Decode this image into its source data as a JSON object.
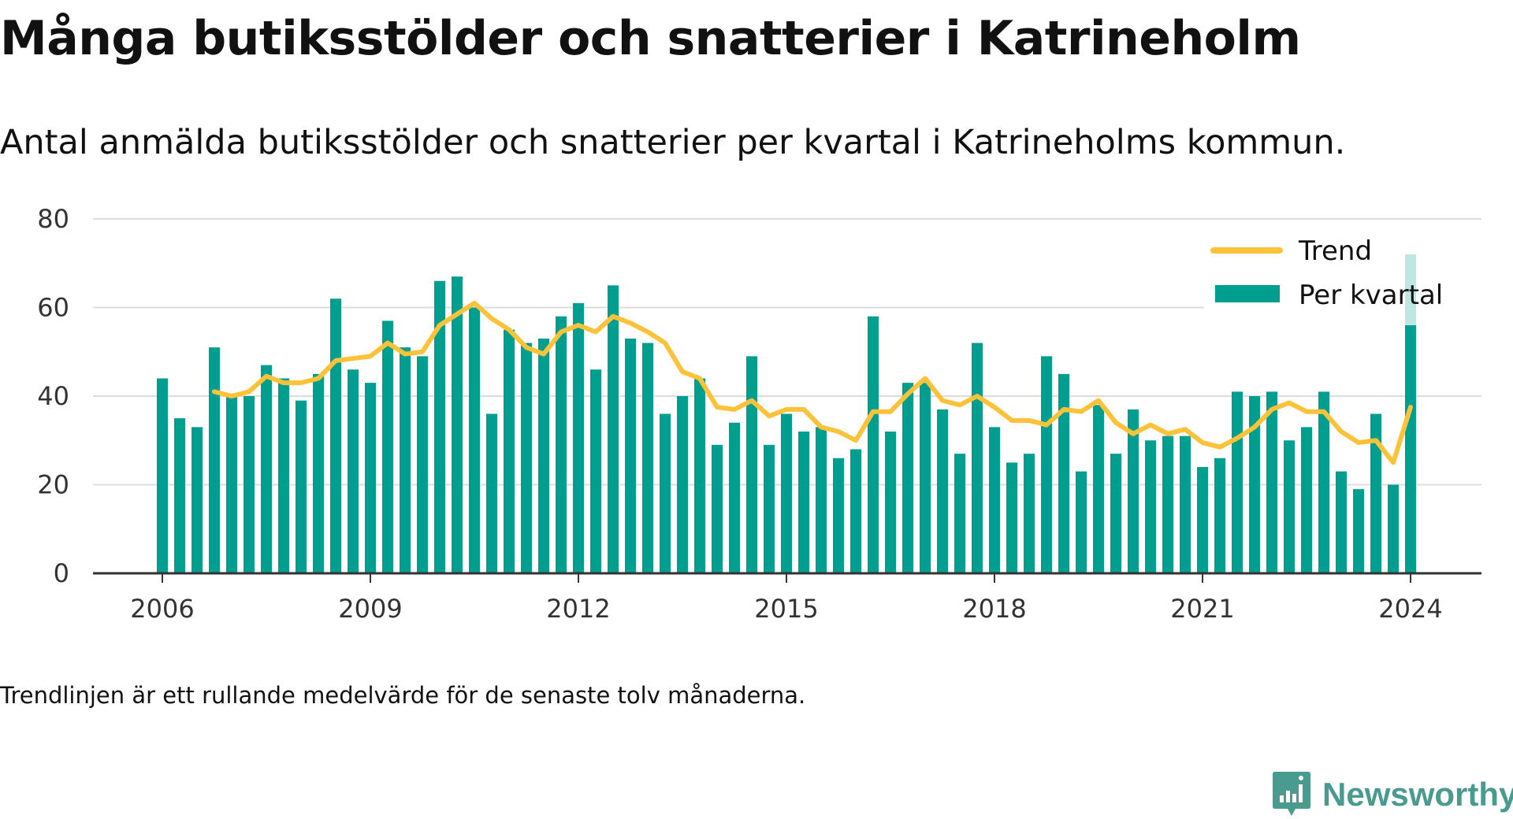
{
  "header": {
    "title": "Många butiksstölder och snatterier i Katrineholm",
    "subtitle": "Antal anmälda butiksstölder och snatterier per kvartal i Katrineholms kommun."
  },
  "footer": {
    "note": "Trendlinjen är ett rullande medelvärde för de senaste tolv månaderna.",
    "brand": "Newsworthy"
  },
  "colors": {
    "bar": "#009e8f",
    "bar_last": "#bfe6e1",
    "trend": "#fcc23a",
    "grid": "#dddddd",
    "axis": "#333333",
    "brand": "#4a9b8f"
  },
  "chart_data": {
    "type": "bar",
    "x_start": "2006-Q1",
    "x_ticks": [
      "2006",
      "2009",
      "2012",
      "2015",
      "2018",
      "2021",
      "2024"
    ],
    "y_ticks": [
      "0",
      "20",
      "40",
      "60",
      "80"
    ],
    "ylim": [
      0,
      80
    ],
    "grid": true,
    "legend_position": "top-right",
    "series": [
      {
        "name": "Per kvartal",
        "type": "bar",
        "values": [
          44,
          35,
          33,
          51,
          40,
          40,
          47,
          44,
          39,
          45,
          62,
          46,
          43,
          57,
          51,
          49,
          66,
          67,
          60,
          36,
          55,
          52,
          53,
          58,
          61,
          46,
          65,
          53,
          52,
          36,
          40,
          44,
          29,
          34,
          49,
          29,
          36,
          32,
          33,
          26,
          28,
          58,
          32,
          43,
          43,
          37,
          27,
          52,
          33,
          25,
          27,
          49,
          45,
          23,
          38,
          27,
          37,
          30,
          31,
          31,
          24,
          26,
          41,
          40,
          41,
          30,
          33,
          41,
          23,
          19,
          36,
          20,
          72
        ]
      },
      {
        "name": "Trend",
        "type": "line",
        "values": [
          null,
          null,
          null,
          41,
          40,
          41,
          44.5,
          43,
          43,
          44,
          48,
          48.5,
          49,
          52,
          49.5,
          50,
          56,
          58.5,
          61,
          57.5,
          55,
          51,
          49.5,
          54.5,
          56,
          54.5,
          58,
          56.5,
          54.5,
          52,
          45.5,
          44,
          37.5,
          37,
          39,
          35.5,
          37,
          37,
          33,
          32,
          30,
          36.5,
          36.5,
          40.5,
          44,
          39,
          38,
          40,
          37.5,
          34.5,
          34.5,
          33.5,
          37,
          36.5,
          39,
          34,
          31.5,
          33.5,
          31.5,
          32.5,
          29.5,
          28.5,
          30.5,
          33,
          37,
          38.5,
          36.5,
          36.5,
          32,
          29.5,
          30,
          25,
          37.5
        ]
      }
    ]
  }
}
